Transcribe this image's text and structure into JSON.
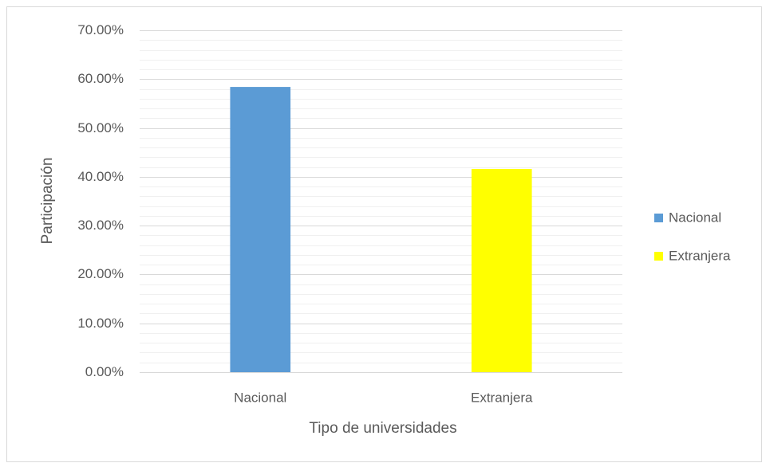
{
  "chart_data": {
    "type": "bar",
    "categories": [
      "Nacional",
      "Extranjera"
    ],
    "values": [
      58.4,
      41.6
    ],
    "colors": [
      "#5b9bd5",
      "#ffff00"
    ],
    "x_label": "Tipo de universidades",
    "y_label": "Participación",
    "ylim": [
      0,
      70
    ],
    "yticks": [
      {
        "value": 0,
        "label": "0.00%"
      },
      {
        "value": 10,
        "label": "10.00%"
      },
      {
        "value": 20,
        "label": "20.00%"
      },
      {
        "value": 30,
        "label": "30.00%"
      },
      {
        "value": 40,
        "label": "40.00%"
      },
      {
        "value": 50,
        "label": "50.00%"
      },
      {
        "value": 60,
        "label": "60.00%"
      },
      {
        "value": 70,
        "label": "70.00%"
      }
    ],
    "minor_yticks": [
      2,
      4,
      6,
      8,
      12,
      14,
      16,
      18,
      22,
      24,
      26,
      28,
      32,
      34,
      36,
      38,
      42,
      44,
      46,
      48,
      52,
      54,
      56,
      58,
      62,
      64,
      66,
      68
    ],
    "grid": true,
    "legend": "right"
  }
}
